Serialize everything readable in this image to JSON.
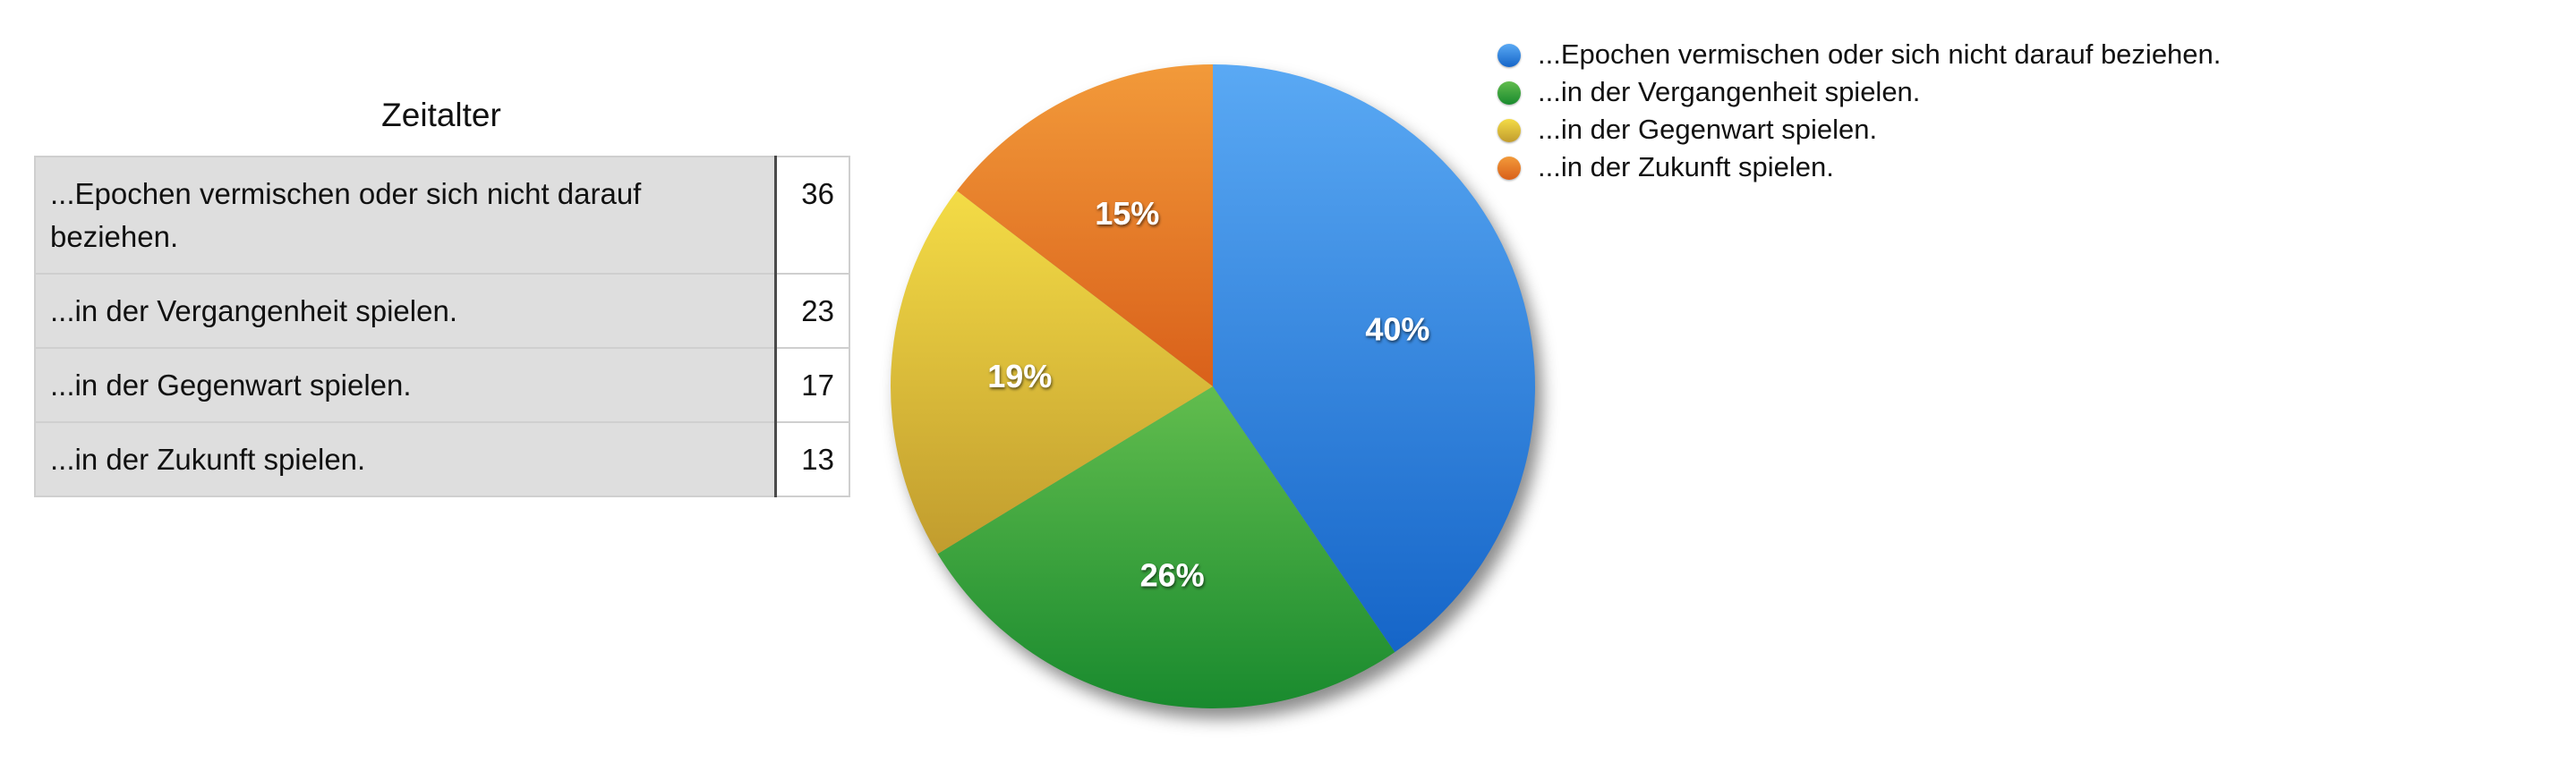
{
  "table": {
    "title": "Zeitalter",
    "rows": [
      {
        "label": "...Epochen vermischen oder sich nicht darauf beziehen.",
        "value": "36"
      },
      {
        "label": "...in der Vergangenheit spielen.",
        "value": "23"
      },
      {
        "label": "...in der Gegenwart spielen.",
        "value": "17"
      },
      {
        "label": "...in der Zukunft spielen.",
        "value": "13"
      }
    ]
  },
  "chart_data": {
    "type": "pie",
    "categories": [
      "...Epochen vermischen oder sich nicht darauf beziehen.",
      "...in der Vergangenheit spielen.",
      "...in der Gegenwart spielen.",
      "...in der Zukunft spielen."
    ],
    "values": [
      36,
      23,
      17,
      13
    ],
    "data_labels": [
      "40%",
      "26%",
      "19%",
      "15%"
    ],
    "colors": [
      {
        "light": "#5aa9f4",
        "dark": "#1565c8"
      },
      {
        "light": "#62bd4e",
        "dark": "#198a2e"
      },
      {
        "light": "#f4dc46",
        "dark": "#c19c2e"
      },
      {
        "light": "#f29a3a",
        "dark": "#d9601a"
      }
    ],
    "legend_position": "top-right"
  }
}
